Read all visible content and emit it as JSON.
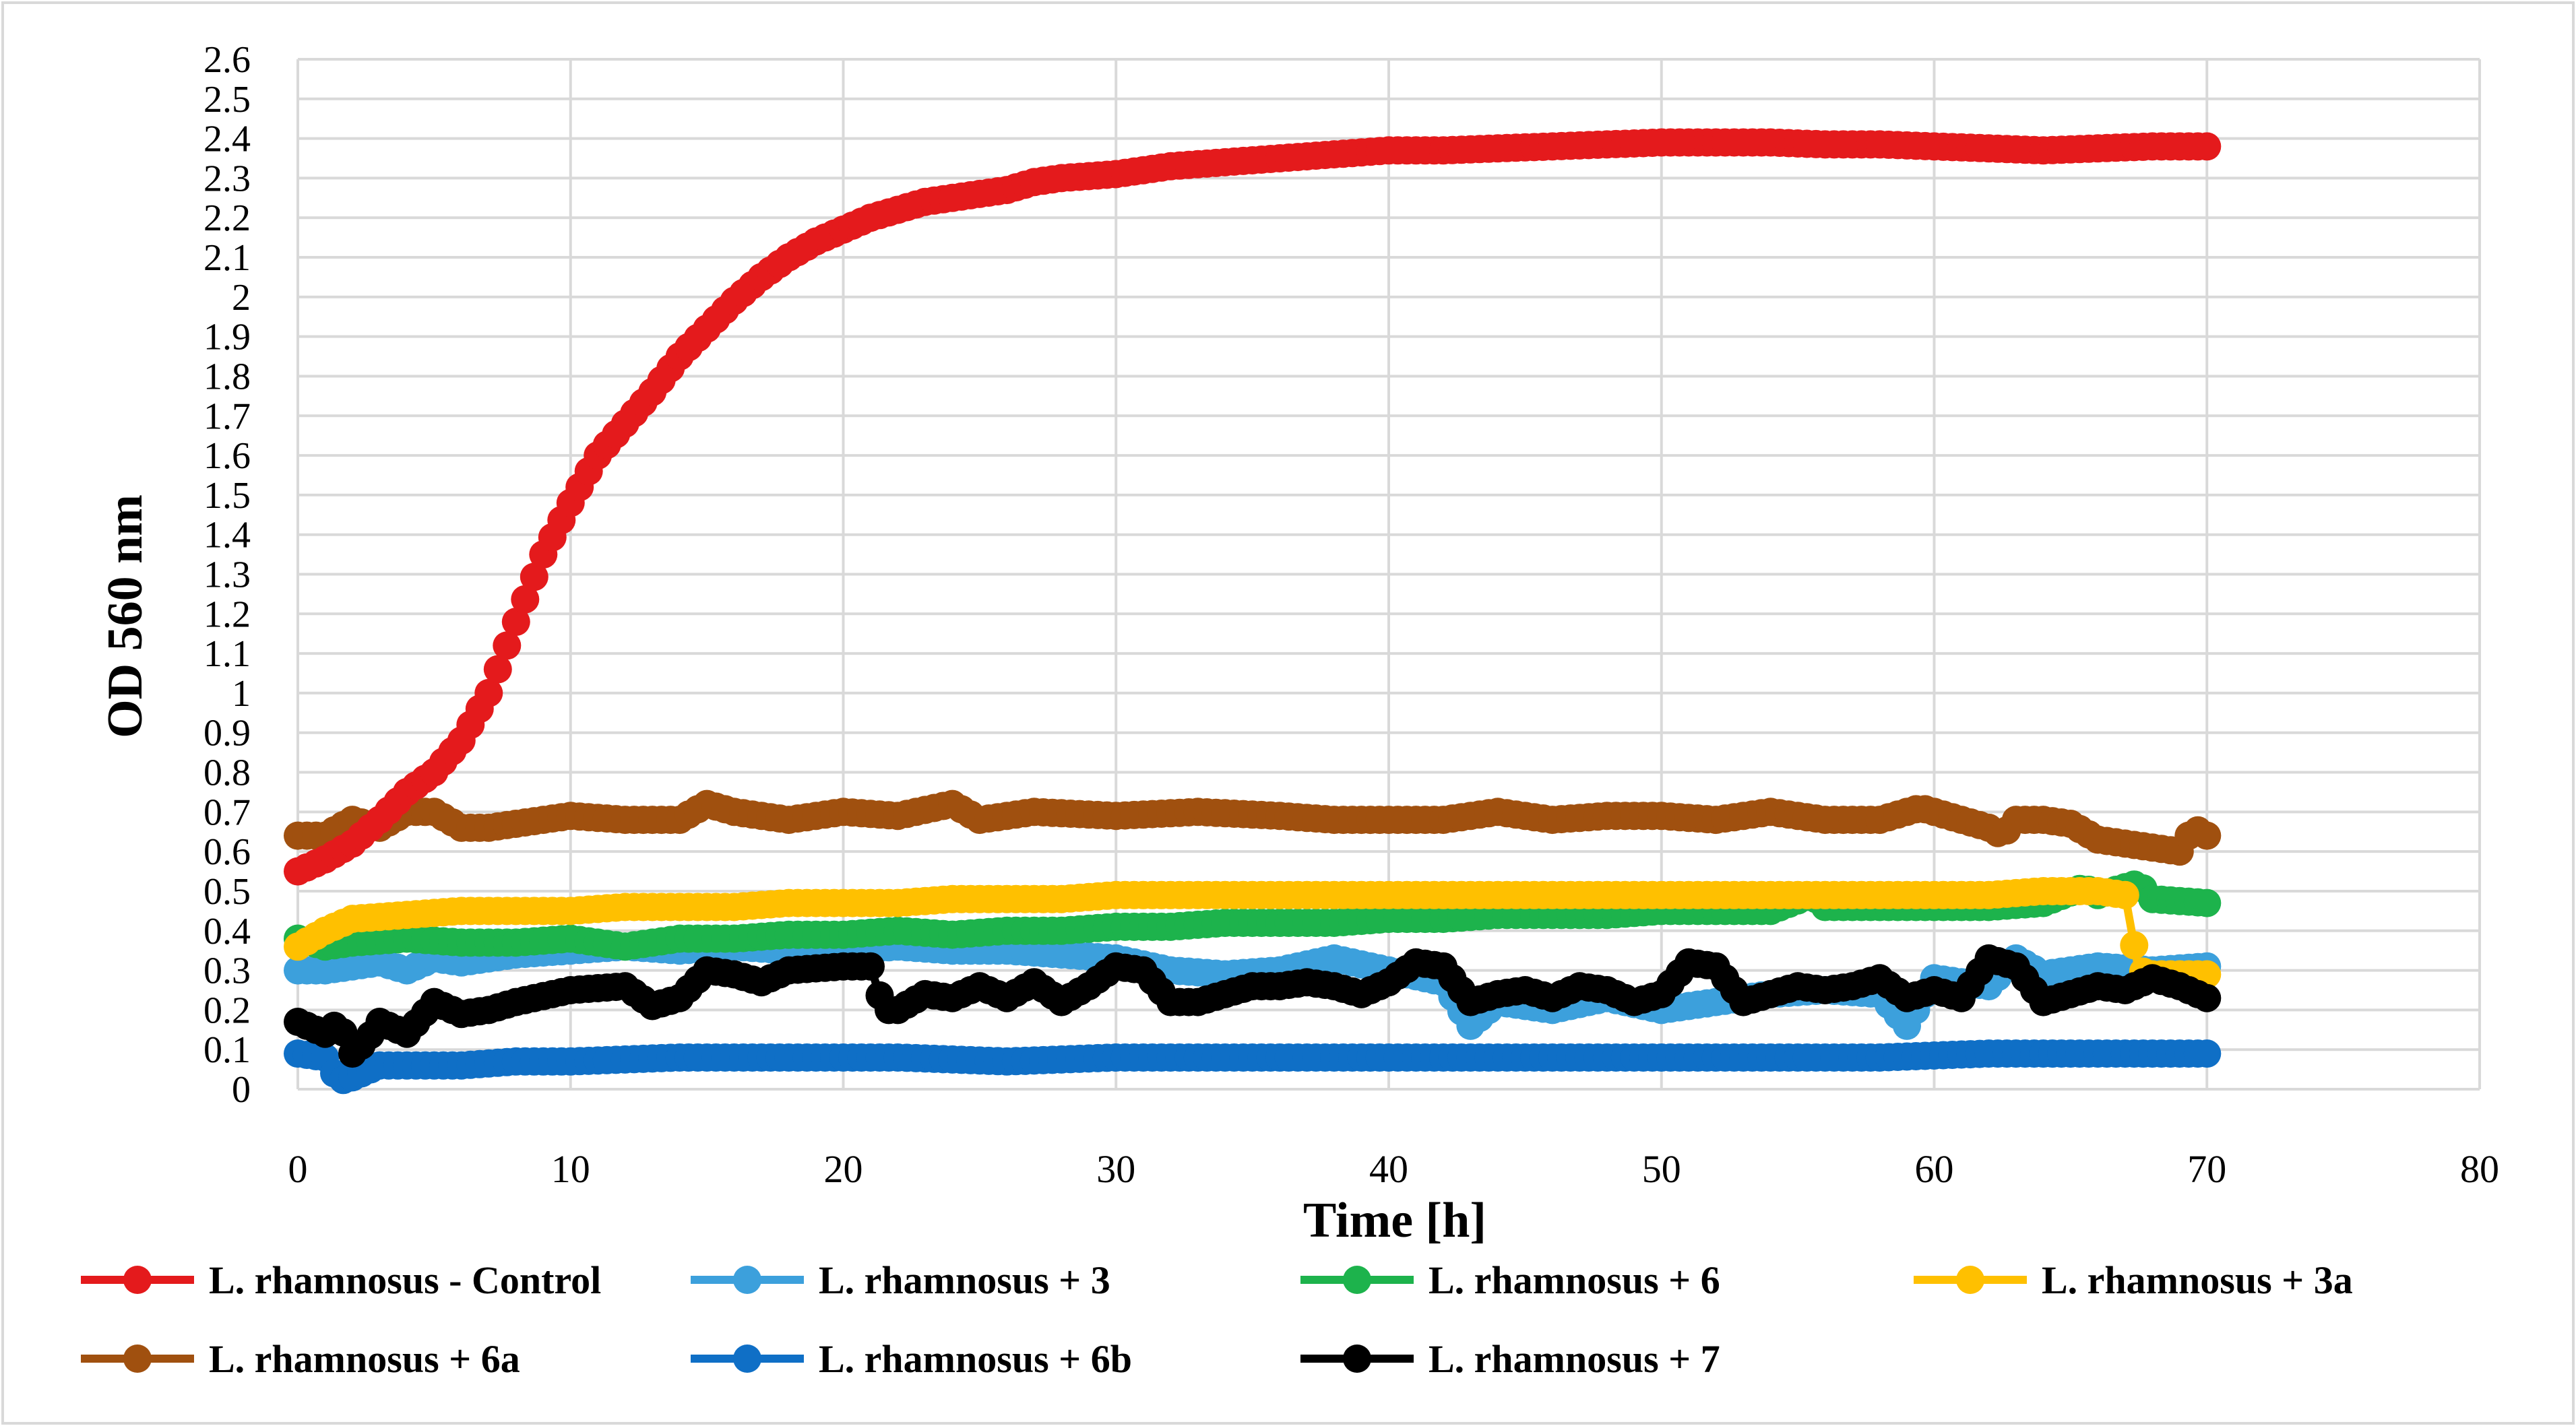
{
  "chart_data": {
    "type": "line",
    "title": "",
    "xlabel": "Time [h]",
    "ylabel": "OD 560 nm",
    "xlim": [
      0,
      80
    ],
    "ylim": [
      0,
      2.6
    ],
    "x_ticks": [
      "0",
      "10",
      "20",
      "30",
      "40",
      "50",
      "60",
      "70",
      "80"
    ],
    "y_ticks": [
      "0",
      "0.1",
      "0.2",
      "0.3",
      "0.4",
      "0.5",
      "0.6",
      "0.7",
      "0.8",
      "0.9",
      "1",
      "1.1",
      "1.2",
      "1.3",
      "1.4",
      "1.5",
      "1.6",
      "1.7",
      "1.8",
      "1.9",
      "2",
      "2.1",
      "2.2",
      "2.3",
      "2.4",
      "2.5",
      "2.6"
    ],
    "grid": true,
    "legend_position": "bottom",
    "series": [
      {
        "name": "L. rhamnosus - Control",
        "color": "#e41a1c",
        "points": [
          [
            0,
            0.55
          ],
          [
            1,
            0.58
          ],
          [
            2,
            0.62
          ],
          [
            3,
            0.68
          ],
          [
            4,
            0.75
          ],
          [
            5,
            0.8
          ],
          [
            6,
            0.88
          ],
          [
            7,
            1.0
          ],
          [
            8,
            1.18
          ],
          [
            9,
            1.35
          ],
          [
            10,
            1.48
          ],
          [
            11,
            1.6
          ],
          [
            12,
            1.68
          ],
          [
            13,
            1.76
          ],
          [
            14,
            1.85
          ],
          [
            15,
            1.92
          ],
          [
            16,
            1.99
          ],
          [
            17,
            2.05
          ],
          [
            18,
            2.1
          ],
          [
            19,
            2.14
          ],
          [
            20,
            2.17
          ],
          [
            21,
            2.2
          ],
          [
            22,
            2.22
          ],
          [
            23,
            2.24
          ],
          [
            24,
            2.25
          ],
          [
            25,
            2.26
          ],
          [
            26,
            2.27
          ],
          [
            27,
            2.29
          ],
          [
            28,
            2.3
          ],
          [
            30,
            2.31
          ],
          [
            32,
            2.33
          ],
          [
            34,
            2.34
          ],
          [
            36,
            2.35
          ],
          [
            38,
            2.36
          ],
          [
            40,
            2.37
          ],
          [
            42,
            2.37
          ],
          [
            44,
            2.375
          ],
          [
            46,
            2.38
          ],
          [
            48,
            2.385
          ],
          [
            50,
            2.39
          ],
          [
            52,
            2.39
          ],
          [
            54,
            2.39
          ],
          [
            56,
            2.385
          ],
          [
            58,
            2.385
          ],
          [
            60,
            2.38
          ],
          [
            62,
            2.375
          ],
          [
            64,
            2.37
          ],
          [
            66,
            2.375
          ],
          [
            68,
            2.38
          ],
          [
            70,
            2.38
          ]
        ]
      },
      {
        "name": "L. rhamnosus + 3",
        "color": "#3ca0dc",
        "points": [
          [
            0,
            0.3
          ],
          [
            1,
            0.3
          ],
          [
            2,
            0.31
          ],
          [
            3,
            0.32
          ],
          [
            4,
            0.3
          ],
          [
            5,
            0.33
          ],
          [
            6,
            0.32
          ],
          [
            8,
            0.34
          ],
          [
            10,
            0.35
          ],
          [
            12,
            0.36
          ],
          [
            14,
            0.35
          ],
          [
            16,
            0.36
          ],
          [
            18,
            0.35
          ],
          [
            20,
            0.35
          ],
          [
            22,
            0.36
          ],
          [
            24,
            0.35
          ],
          [
            26,
            0.35
          ],
          [
            28,
            0.34
          ],
          [
            30,
            0.33
          ],
          [
            32,
            0.3
          ],
          [
            34,
            0.29
          ],
          [
            36,
            0.3
          ],
          [
            38,
            0.33
          ],
          [
            40,
            0.3
          ],
          [
            42,
            0.27
          ],
          [
            43,
            0.16
          ],
          [
            44,
            0.22
          ],
          [
            46,
            0.2
          ],
          [
            48,
            0.23
          ],
          [
            50,
            0.2
          ],
          [
            52,
            0.22
          ],
          [
            54,
            0.24
          ],
          [
            56,
            0.25
          ],
          [
            58,
            0.24
          ],
          [
            59,
            0.16
          ],
          [
            60,
            0.28
          ],
          [
            62,
            0.26
          ],
          [
            63,
            0.33
          ],
          [
            64,
            0.29
          ],
          [
            66,
            0.31
          ],
          [
            68,
            0.3
          ],
          [
            70,
            0.31
          ]
        ]
      },
      {
        "name": "L. rhamnosus + 6",
        "color": "#1db34c",
        "points": [
          [
            0,
            0.38
          ],
          [
            1,
            0.36
          ],
          [
            2,
            0.37
          ],
          [
            4,
            0.38
          ],
          [
            6,
            0.37
          ],
          [
            8,
            0.37
          ],
          [
            10,
            0.38
          ],
          [
            12,
            0.36
          ],
          [
            14,
            0.38
          ],
          [
            16,
            0.38
          ],
          [
            18,
            0.39
          ],
          [
            20,
            0.39
          ],
          [
            22,
            0.4
          ],
          [
            24,
            0.39
          ],
          [
            26,
            0.4
          ],
          [
            28,
            0.4
          ],
          [
            30,
            0.41
          ],
          [
            32,
            0.41
          ],
          [
            34,
            0.42
          ],
          [
            36,
            0.42
          ],
          [
            38,
            0.42
          ],
          [
            40,
            0.43
          ],
          [
            42,
            0.43
          ],
          [
            44,
            0.44
          ],
          [
            46,
            0.44
          ],
          [
            48,
            0.44
          ],
          [
            50,
            0.45
          ],
          [
            52,
            0.45
          ],
          [
            54,
            0.45
          ],
          [
            55.5,
            0.49
          ],
          [
            56,
            0.46
          ],
          [
            58,
            0.46
          ],
          [
            60,
            0.46
          ],
          [
            62,
            0.46
          ],
          [
            64,
            0.47
          ],
          [
            65.5,
            0.51
          ],
          [
            66,
            0.49
          ],
          [
            67.5,
            0.52
          ],
          [
            68,
            0.48
          ],
          [
            70,
            0.47
          ]
        ]
      },
      {
        "name": "L. rhamnosus + 3a",
        "color": "#ffc000",
        "points": [
          [
            0,
            0.36
          ],
          [
            1,
            0.4
          ],
          [
            2,
            0.43
          ],
          [
            4,
            0.44
          ],
          [
            6,
            0.45
          ],
          [
            8,
            0.45
          ],
          [
            10,
            0.45
          ],
          [
            12,
            0.46
          ],
          [
            14,
            0.46
          ],
          [
            16,
            0.46
          ],
          [
            18,
            0.47
          ],
          [
            20,
            0.47
          ],
          [
            22,
            0.47
          ],
          [
            24,
            0.48
          ],
          [
            26,
            0.48
          ],
          [
            28,
            0.48
          ],
          [
            30,
            0.49
          ],
          [
            32,
            0.49
          ],
          [
            34,
            0.49
          ],
          [
            36,
            0.49
          ],
          [
            38,
            0.49
          ],
          [
            40,
            0.49
          ],
          [
            42,
            0.49
          ],
          [
            44,
            0.49
          ],
          [
            46,
            0.49
          ],
          [
            48,
            0.49
          ],
          [
            50,
            0.49
          ],
          [
            52,
            0.49
          ],
          [
            54,
            0.49
          ],
          [
            56,
            0.49
          ],
          [
            58,
            0.49
          ],
          [
            60,
            0.49
          ],
          [
            62,
            0.49
          ],
          [
            64,
            0.5
          ],
          [
            66,
            0.5
          ],
          [
            67,
            0.49
          ],
          [
            67.5,
            0.3
          ],
          [
            68,
            0.29
          ],
          [
            70,
            0.29
          ]
        ]
      },
      {
        "name": "L. rhamnosus + 6a",
        "color": "#a0500f",
        "points": [
          [
            0,
            0.64
          ],
          [
            1,
            0.64
          ],
          [
            2,
            0.68
          ],
          [
            3,
            0.66
          ],
          [
            4,
            0.7
          ],
          [
            5,
            0.7
          ],
          [
            6,
            0.66
          ],
          [
            7,
            0.66
          ],
          [
            8,
            0.67
          ],
          [
            10,
            0.69
          ],
          [
            12,
            0.68
          ],
          [
            14,
            0.68
          ],
          [
            15,
            0.72
          ],
          [
            16,
            0.7
          ],
          [
            18,
            0.68
          ],
          [
            20,
            0.7
          ],
          [
            22,
            0.69
          ],
          [
            24,
            0.72
          ],
          [
            25,
            0.68
          ],
          [
            27,
            0.7
          ],
          [
            30,
            0.69
          ],
          [
            33,
            0.7
          ],
          [
            36,
            0.69
          ],
          [
            38,
            0.68
          ],
          [
            40,
            0.68
          ],
          [
            42,
            0.68
          ],
          [
            44,
            0.7
          ],
          [
            46,
            0.68
          ],
          [
            48,
            0.69
          ],
          [
            50,
            0.69
          ],
          [
            52,
            0.68
          ],
          [
            54,
            0.7
          ],
          [
            56,
            0.68
          ],
          [
            58,
            0.68
          ],
          [
            59.5,
            0.71
          ],
          [
            61,
            0.68
          ],
          [
            62,
            0.66
          ],
          [
            62.5,
            0.64
          ],
          [
            63,
            0.68
          ],
          [
            64,
            0.68
          ],
          [
            65,
            0.67
          ],
          [
            66,
            0.63
          ],
          [
            68,
            0.61
          ],
          [
            69,
            0.6
          ],
          [
            69.5,
            0.66
          ],
          [
            70,
            0.64
          ]
        ]
      },
      {
        "name": "L. rhamnosus + 6b",
        "color": "#0f6fc6",
        "points": [
          [
            0,
            0.09
          ],
          [
            1,
            0.08
          ],
          [
            1.5,
            0.02
          ],
          [
            2,
            0.03
          ],
          [
            3,
            0.06
          ],
          [
            4,
            0.06
          ],
          [
            6,
            0.06
          ],
          [
            8,
            0.07
          ],
          [
            10,
            0.07
          ],
          [
            14,
            0.08
          ],
          [
            18,
            0.08
          ],
          [
            22,
            0.08
          ],
          [
            26,
            0.07
          ],
          [
            30,
            0.08
          ],
          [
            34,
            0.08
          ],
          [
            38,
            0.08
          ],
          [
            42,
            0.08
          ],
          [
            46,
            0.08
          ],
          [
            50,
            0.08
          ],
          [
            54,
            0.08
          ],
          [
            58,
            0.08
          ],
          [
            62,
            0.09
          ],
          [
            66,
            0.09
          ],
          [
            70,
            0.09
          ]
        ]
      },
      {
        "name": "L. rhamnosus + 7",
        "color": "#000000",
        "points": [
          [
            0,
            0.17
          ],
          [
            1,
            0.14
          ],
          [
            1.5,
            0.17
          ],
          [
            2,
            0.09
          ],
          [
            2.5,
            0.12
          ],
          [
            3,
            0.17
          ],
          [
            4,
            0.14
          ],
          [
            5,
            0.22
          ],
          [
            6,
            0.19
          ],
          [
            7,
            0.2
          ],
          [
            8,
            0.22
          ],
          [
            10,
            0.25
          ],
          [
            12,
            0.26
          ],
          [
            13,
            0.21
          ],
          [
            14,
            0.23
          ],
          [
            15,
            0.3
          ],
          [
            16,
            0.29
          ],
          [
            17,
            0.27
          ],
          [
            18,
            0.3
          ],
          [
            20,
            0.31
          ],
          [
            21,
            0.31
          ],
          [
            21.5,
            0.2
          ],
          [
            22,
            0.2
          ],
          [
            23,
            0.24
          ],
          [
            24,
            0.23
          ],
          [
            25,
            0.26
          ],
          [
            26,
            0.23
          ],
          [
            27,
            0.27
          ],
          [
            28,
            0.22
          ],
          [
            29,
            0.26
          ],
          [
            30,
            0.31
          ],
          [
            31,
            0.3
          ],
          [
            32,
            0.22
          ],
          [
            33,
            0.22
          ],
          [
            34,
            0.24
          ],
          [
            35,
            0.26
          ],
          [
            36,
            0.26
          ],
          [
            37,
            0.27
          ],
          [
            38,
            0.26
          ],
          [
            39,
            0.24
          ],
          [
            40,
            0.27
          ],
          [
            41,
            0.32
          ],
          [
            42,
            0.31
          ],
          [
            43,
            0.22
          ],
          [
            44,
            0.24
          ],
          [
            45,
            0.25
          ],
          [
            46,
            0.23
          ],
          [
            47,
            0.26
          ],
          [
            48,
            0.25
          ],
          [
            49,
            0.22
          ],
          [
            50,
            0.24
          ],
          [
            51,
            0.32
          ],
          [
            52,
            0.31
          ],
          [
            53,
            0.22
          ],
          [
            54,
            0.24
          ],
          [
            55,
            0.26
          ],
          [
            56,
            0.25
          ],
          [
            57,
            0.26
          ],
          [
            58,
            0.28
          ],
          [
            59,
            0.23
          ],
          [
            60,
            0.25
          ],
          [
            61,
            0.23
          ],
          [
            62,
            0.33
          ],
          [
            63,
            0.31
          ],
          [
            64,
            0.22
          ],
          [
            65,
            0.24
          ],
          [
            66,
            0.26
          ],
          [
            67,
            0.25
          ],
          [
            68,
            0.28
          ],
          [
            69,
            0.26
          ],
          [
            70,
            0.23
          ]
        ]
      }
    ]
  }
}
